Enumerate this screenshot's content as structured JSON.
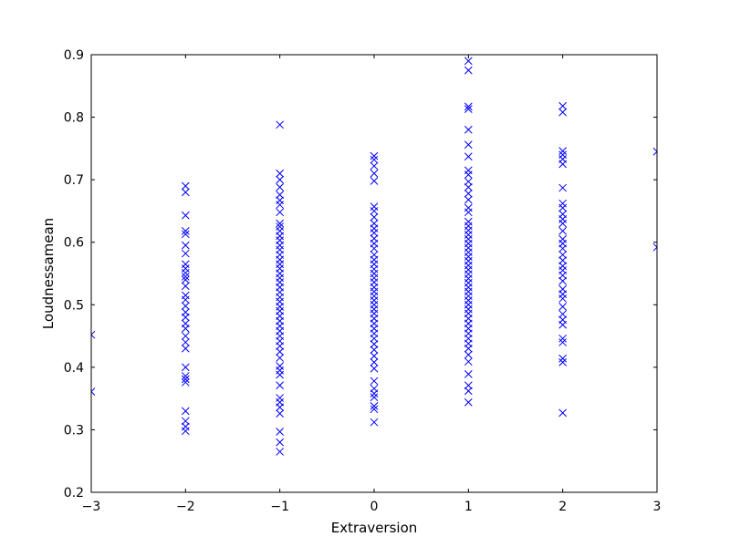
{
  "chart_data": {
    "type": "scatter",
    "title": "",
    "xlabel": "Extraversion",
    "ylabel": "Loudnessamean",
    "xlim": [
      -3,
      3
    ],
    "ylim": [
      0.2,
      0.9
    ],
    "x_ticks": [
      "-3",
      "-2",
      "-1",
      "0",
      "1",
      "2",
      "3"
    ],
    "y_ticks": [
      "0.2",
      "0.3",
      "0.4",
      "0.5",
      "0.6",
      "0.7",
      "0.8",
      "0.9"
    ],
    "grid": false,
    "marker": "x",
    "color": "#0000ff",
    "points": [
      {
        "x": -3,
        "y": 0.452
      },
      {
        "x": -3,
        "y": 0.361
      },
      {
        "x": -2,
        "y": 0.69
      },
      {
        "x": -2,
        "y": 0.68
      },
      {
        "x": -2,
        "y": 0.643
      },
      {
        "x": -2,
        "y": 0.618
      },
      {
        "x": -2,
        "y": 0.613
      },
      {
        "x": -2,
        "y": 0.595
      },
      {
        "x": -2,
        "y": 0.582
      },
      {
        "x": -2,
        "y": 0.565
      },
      {
        "x": -2,
        "y": 0.558
      },
      {
        "x": -2,
        "y": 0.551
      },
      {
        "x": -2,
        "y": 0.545
      },
      {
        "x": -2,
        "y": 0.54
      },
      {
        "x": -2,
        "y": 0.53
      },
      {
        "x": -2,
        "y": 0.515
      },
      {
        "x": -2,
        "y": 0.508
      },
      {
        "x": -2,
        "y": 0.498
      },
      {
        "x": -2,
        "y": 0.488
      },
      {
        "x": -2,
        "y": 0.48
      },
      {
        "x": -2,
        "y": 0.47
      },
      {
        "x": -2,
        "y": 0.462
      },
      {
        "x": -2,
        "y": 0.45
      },
      {
        "x": -2,
        "y": 0.44
      },
      {
        "x": -2,
        "y": 0.43
      },
      {
        "x": -2,
        "y": 0.4
      },
      {
        "x": -2,
        "y": 0.386
      },
      {
        "x": -2,
        "y": 0.381
      },
      {
        "x": -2,
        "y": 0.376
      },
      {
        "x": -2,
        "y": 0.33
      },
      {
        "x": -2,
        "y": 0.314
      },
      {
        "x": -2,
        "y": 0.305
      },
      {
        "x": -2,
        "y": 0.298
      },
      {
        "x": -1,
        "y": 0.788
      },
      {
        "x": -1,
        "y": 0.71
      },
      {
        "x": -1,
        "y": 0.7
      },
      {
        "x": -1,
        "y": 0.688
      },
      {
        "x": -1,
        "y": 0.676
      },
      {
        "x": -1,
        "y": 0.667
      },
      {
        "x": -1,
        "y": 0.66
      },
      {
        "x": -1,
        "y": 0.648
      },
      {
        "x": -1,
        "y": 0.63
      },
      {
        "x": -1,
        "y": 0.625
      },
      {
        "x": -1,
        "y": 0.618
      },
      {
        "x": -1,
        "y": 0.61
      },
      {
        "x": -1,
        "y": 0.603
      },
      {
        "x": -1,
        "y": 0.595
      },
      {
        "x": -1,
        "y": 0.588
      },
      {
        "x": -1,
        "y": 0.58
      },
      {
        "x": -1,
        "y": 0.572
      },
      {
        "x": -1,
        "y": 0.565
      },
      {
        "x": -1,
        "y": 0.558
      },
      {
        "x": -1,
        "y": 0.55
      },
      {
        "x": -1,
        "y": 0.543
      },
      {
        "x": -1,
        "y": 0.536
      },
      {
        "x": -1,
        "y": 0.528
      },
      {
        "x": -1,
        "y": 0.52
      },
      {
        "x": -1,
        "y": 0.512
      },
      {
        "x": -1,
        "y": 0.505
      },
      {
        "x": -1,
        "y": 0.497
      },
      {
        "x": -1,
        "y": 0.49
      },
      {
        "x": -1,
        "y": 0.482
      },
      {
        "x": -1,
        "y": 0.474
      },
      {
        "x": -1,
        "y": 0.466
      },
      {
        "x": -1,
        "y": 0.458
      },
      {
        "x": -1,
        "y": 0.45
      },
      {
        "x": -1,
        "y": 0.442
      },
      {
        "x": -1,
        "y": 0.434
      },
      {
        "x": -1,
        "y": 0.425
      },
      {
        "x": -1,
        "y": 0.415
      },
      {
        "x": -1,
        "y": 0.402
      },
      {
        "x": -1,
        "y": 0.395
      },
      {
        "x": -1,
        "y": 0.388
      },
      {
        "x": -1,
        "y": 0.371
      },
      {
        "x": -1,
        "y": 0.351
      },
      {
        "x": -1,
        "y": 0.344
      },
      {
        "x": -1,
        "y": 0.336
      },
      {
        "x": -1,
        "y": 0.326
      },
      {
        "x": -1,
        "y": 0.297
      },
      {
        "x": -1,
        "y": 0.28
      },
      {
        "x": -1,
        "y": 0.265
      },
      {
        "x": 0,
        "y": 0.738
      },
      {
        "x": 0,
        "y": 0.732
      },
      {
        "x": 0,
        "y": 0.722
      },
      {
        "x": 0,
        "y": 0.71
      },
      {
        "x": 0,
        "y": 0.698
      },
      {
        "x": 0,
        "y": 0.657
      },
      {
        "x": 0,
        "y": 0.65
      },
      {
        "x": 0,
        "y": 0.64
      },
      {
        "x": 0,
        "y": 0.63
      },
      {
        "x": 0,
        "y": 0.622
      },
      {
        "x": 0,
        "y": 0.615
      },
      {
        "x": 0,
        "y": 0.606
      },
      {
        "x": 0,
        "y": 0.598
      },
      {
        "x": 0,
        "y": 0.59
      },
      {
        "x": 0,
        "y": 0.58
      },
      {
        "x": 0,
        "y": 0.572
      },
      {
        "x": 0,
        "y": 0.565
      },
      {
        "x": 0,
        "y": 0.557
      },
      {
        "x": 0,
        "y": 0.55
      },
      {
        "x": 0,
        "y": 0.543
      },
      {
        "x": 0,
        "y": 0.536
      },
      {
        "x": 0,
        "y": 0.528
      },
      {
        "x": 0,
        "y": 0.521
      },
      {
        "x": 0,
        "y": 0.514
      },
      {
        "x": 0,
        "y": 0.507
      },
      {
        "x": 0,
        "y": 0.5
      },
      {
        "x": 0,
        "y": 0.493
      },
      {
        "x": 0,
        "y": 0.486
      },
      {
        "x": 0,
        "y": 0.478
      },
      {
        "x": 0,
        "y": 0.47
      },
      {
        "x": 0,
        "y": 0.462
      },
      {
        "x": 0,
        "y": 0.454
      },
      {
        "x": 0,
        "y": 0.446
      },
      {
        "x": 0,
        "y": 0.437
      },
      {
        "x": 0,
        "y": 0.428
      },
      {
        "x": 0,
        "y": 0.418
      },
      {
        "x": 0,
        "y": 0.408
      },
      {
        "x": 0,
        "y": 0.398
      },
      {
        "x": 0,
        "y": 0.378
      },
      {
        "x": 0,
        "y": 0.366
      },
      {
        "x": 0,
        "y": 0.358
      },
      {
        "x": 0,
        "y": 0.352
      },
      {
        "x": 0,
        "y": 0.338
      },
      {
        "x": 0,
        "y": 0.333
      },
      {
        "x": 0,
        "y": 0.312
      },
      {
        "x": 1,
        "y": 0.89
      },
      {
        "x": 1,
        "y": 0.875
      },
      {
        "x": 1,
        "y": 0.817
      },
      {
        "x": 1,
        "y": 0.813
      },
      {
        "x": 1,
        "y": 0.78
      },
      {
        "x": 1,
        "y": 0.756
      },
      {
        "x": 1,
        "y": 0.737
      },
      {
        "x": 1,
        "y": 0.715
      },
      {
        "x": 1,
        "y": 0.708
      },
      {
        "x": 1,
        "y": 0.697
      },
      {
        "x": 1,
        "y": 0.688
      },
      {
        "x": 1,
        "y": 0.678
      },
      {
        "x": 1,
        "y": 0.668
      },
      {
        "x": 1,
        "y": 0.655
      },
      {
        "x": 1,
        "y": 0.648
      },
      {
        "x": 1,
        "y": 0.633
      },
      {
        "x": 1,
        "y": 0.626
      },
      {
        "x": 1,
        "y": 0.619
      },
      {
        "x": 1,
        "y": 0.612
      },
      {
        "x": 1,
        "y": 0.605
      },
      {
        "x": 1,
        "y": 0.598
      },
      {
        "x": 1,
        "y": 0.591
      },
      {
        "x": 1,
        "y": 0.584
      },
      {
        "x": 1,
        "y": 0.577
      },
      {
        "x": 1,
        "y": 0.57
      },
      {
        "x": 1,
        "y": 0.563
      },
      {
        "x": 1,
        "y": 0.556
      },
      {
        "x": 1,
        "y": 0.549
      },
      {
        "x": 1,
        "y": 0.542
      },
      {
        "x": 1,
        "y": 0.535
      },
      {
        "x": 1,
        "y": 0.528
      },
      {
        "x": 1,
        "y": 0.521
      },
      {
        "x": 1,
        "y": 0.514
      },
      {
        "x": 1,
        "y": 0.507
      },
      {
        "x": 1,
        "y": 0.5
      },
      {
        "x": 1,
        "y": 0.493
      },
      {
        "x": 1,
        "y": 0.486
      },
      {
        "x": 1,
        "y": 0.478
      },
      {
        "x": 1,
        "y": 0.47
      },
      {
        "x": 1,
        "y": 0.462
      },
      {
        "x": 1,
        "y": 0.454
      },
      {
        "x": 1,
        "y": 0.446
      },
      {
        "x": 1,
        "y": 0.438
      },
      {
        "x": 1,
        "y": 0.43
      },
      {
        "x": 1,
        "y": 0.42
      },
      {
        "x": 1,
        "y": 0.409
      },
      {
        "x": 1,
        "y": 0.389
      },
      {
        "x": 1,
        "y": 0.371
      },
      {
        "x": 1,
        "y": 0.362
      },
      {
        "x": 1,
        "y": 0.344
      },
      {
        "x": 2,
        "y": 0.818
      },
      {
        "x": 2,
        "y": 0.808
      },
      {
        "x": 2,
        "y": 0.746
      },
      {
        "x": 2,
        "y": 0.74
      },
      {
        "x": 2,
        "y": 0.733
      },
      {
        "x": 2,
        "y": 0.725
      },
      {
        "x": 2,
        "y": 0.687
      },
      {
        "x": 2,
        "y": 0.662
      },
      {
        "x": 2,
        "y": 0.655
      },
      {
        "x": 2,
        "y": 0.645
      },
      {
        "x": 2,
        "y": 0.637
      },
      {
        "x": 2,
        "y": 0.63
      },
      {
        "x": 2,
        "y": 0.618
      },
      {
        "x": 2,
        "y": 0.605
      },
      {
        "x": 2,
        "y": 0.598
      },
      {
        "x": 2,
        "y": 0.59
      },
      {
        "x": 2,
        "y": 0.58
      },
      {
        "x": 2,
        "y": 0.571
      },
      {
        "x": 2,
        "y": 0.562
      },
      {
        "x": 2,
        "y": 0.555
      },
      {
        "x": 2,
        "y": 0.547
      },
      {
        "x": 2,
        "y": 0.538
      },
      {
        "x": 2,
        "y": 0.525
      },
      {
        "x": 2,
        "y": 0.517
      },
      {
        "x": 2,
        "y": 0.51
      },
      {
        "x": 2,
        "y": 0.497
      },
      {
        "x": 2,
        "y": 0.485
      },
      {
        "x": 2,
        "y": 0.476
      },
      {
        "x": 2,
        "y": 0.468
      },
      {
        "x": 2,
        "y": 0.446
      },
      {
        "x": 2,
        "y": 0.44
      },
      {
        "x": 2,
        "y": 0.414
      },
      {
        "x": 2,
        "y": 0.408
      },
      {
        "x": 2,
        "y": 0.327
      },
      {
        "x": 3,
        "y": 0.745
      },
      {
        "x": 3,
        "y": 0.592
      }
    ]
  }
}
